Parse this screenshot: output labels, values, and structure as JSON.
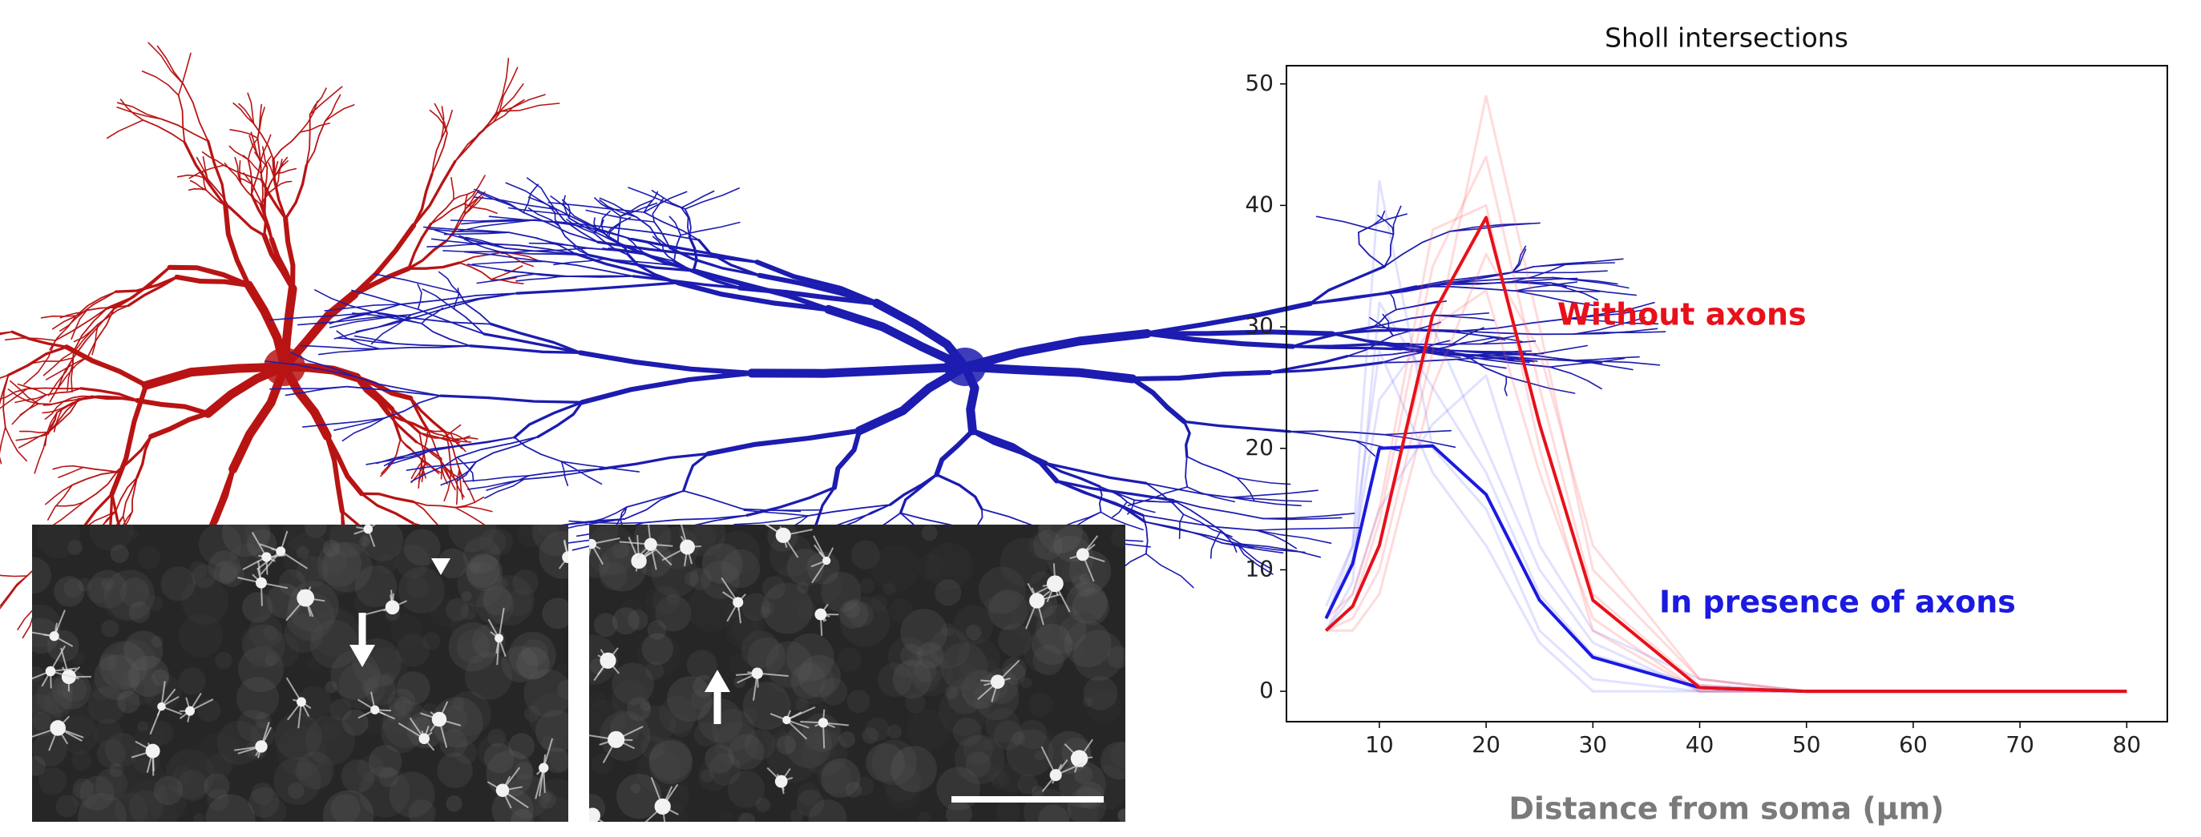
{
  "chart_data": {
    "type": "line",
    "title": "Sholl intersections",
    "x_label": "Distance from soma (μm)",
    "x": [
      5,
      7.5,
      10,
      15,
      20,
      25,
      30,
      40,
      50,
      60,
      70,
      80
    ],
    "xlim": [
      1.3,
      83.8
    ],
    "xticks": [
      10,
      20,
      30,
      40,
      50,
      60,
      70,
      80
    ],
    "ylim": [
      -2.5,
      51.5
    ],
    "yticks": [
      0,
      10,
      20,
      30,
      40,
      50
    ],
    "series": [
      {
        "color": "#5a5aff",
        "opacity": 0.18,
        "values": [
          6,
          12,
          42,
          20,
          15,
          5,
          1,
          0,
          0,
          0,
          0,
          0
        ]
      },
      {
        "color": "#5a5aff",
        "opacity": 0.18,
        "values": [
          5,
          9,
          32,
          25,
          18,
          8,
          3,
          0.5,
          0,
          0,
          0,
          0
        ]
      },
      {
        "color": "#5a5aff",
        "opacity": 0.18,
        "values": [
          6,
          11,
          24,
          30,
          20,
          10,
          4,
          0,
          0,
          0,
          0,
          0
        ]
      },
      {
        "color": "#5a5aff",
        "opacity": 0.18,
        "values": [
          5,
          8,
          15,
          22,
          26,
          12,
          5,
          1,
          0,
          0,
          0,
          0
        ]
      },
      {
        "color": "#5a5aff",
        "opacity": 0.18,
        "values": [
          7,
          12,
          28,
          18,
          12,
          4,
          0,
          0,
          0,
          0,
          0,
          0
        ]
      },
      {
        "color": "#ff5a5a",
        "opacity": 0.22,
        "values": [
          5,
          6,
          10,
          28,
          49,
          30,
          10,
          1,
          0,
          0,
          0,
          0
        ]
      },
      {
        "color": "#ff5a5a",
        "opacity": 0.22,
        "values": [
          5,
          7,
          14,
          35,
          44,
          25,
          8,
          0.5,
          0,
          0,
          0,
          0
        ]
      },
      {
        "color": "#ff5a5a",
        "opacity": 0.22,
        "values": [
          6,
          8,
          15,
          38,
          40,
          20,
          5,
          0,
          0,
          0,
          0,
          0
        ]
      },
      {
        "color": "#ff5a5a",
        "opacity": 0.22,
        "values": [
          5,
          5,
          8,
          25,
          36,
          28,
          12,
          1,
          0,
          0,
          0,
          0
        ]
      },
      {
        "color": "#ff5a5a",
        "opacity": 0.22,
        "values": [
          5,
          7,
          12,
          30,
          33,
          18,
          6,
          0,
          0,
          0,
          0,
          0
        ]
      },
      {
        "name": "In presence of axons",
        "color": "#1a1ae0",
        "opacity": 1,
        "values": [
          6,
          10.5,
          20,
          20.2,
          16.2,
          7.5,
          2.8,
          0.3,
          0,
          0,
          0,
          0
        ]
      },
      {
        "name": "Without axons",
        "color": "#e8101a",
        "opacity": 1,
        "values": [
          5,
          7,
          12,
          31,
          39,
          22,
          7.5,
          0.3,
          0,
          0,
          0,
          0
        ]
      }
    ]
  }
}
